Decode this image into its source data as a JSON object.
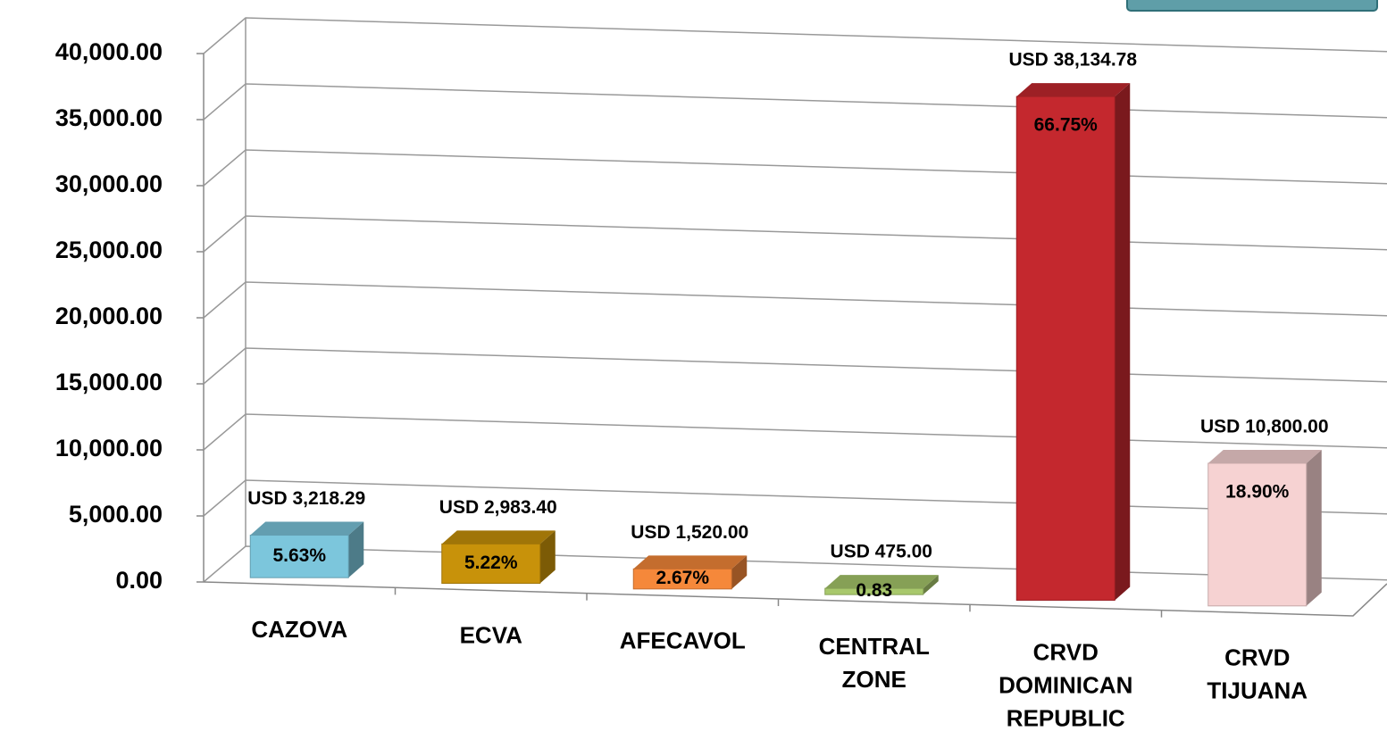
{
  "chart_data": {
    "type": "bar3d",
    "categories": [
      [
        "CAZOVA"
      ],
      [
        "ECVA"
      ],
      [
        "AFECAVOL"
      ],
      [
        "CENTRAL",
        "ZONE"
      ],
      [
        "CRVD",
        "DOMINICAN",
        "REPUBLIC"
      ],
      [
        "CRVD",
        "TIJUANA"
      ]
    ],
    "values": [
      3218.29,
      2983.4,
      1520.0,
      475.0,
      38134.78,
      10800.0
    ],
    "value_labels": [
      "USD 3,218.29",
      "USD 2,983.40",
      "USD 1,520.00",
      "USD 475.00",
      "USD 38,134.78",
      "USD 10,800.00"
    ],
    "share_labels": [
      "5.63%",
      "5.22%",
      "2.67%",
      "0.83",
      "66.75%",
      "18.90%"
    ],
    "colors": [
      "#7cc6dc",
      "#c8920a",
      "#f5883a",
      "#a8c86c",
      "#c4282e",
      "#f6d2d2"
    ],
    "ylim": [
      0,
      40000
    ],
    "yticks": [
      {
        "value": 0,
        "label": "0.00"
      },
      {
        "value": 5000,
        "label": "5,000.00"
      },
      {
        "value": 10000,
        "label": "10,000.00"
      },
      {
        "value": 15000,
        "label": "15,000.00"
      },
      {
        "value": 20000,
        "label": "20,000.00"
      },
      {
        "value": 25000,
        "label": "25,000.00"
      },
      {
        "value": 30000,
        "label": "30,000.00"
      },
      {
        "value": 35000,
        "label": "35,000.00"
      },
      {
        "value": 40000,
        "label": "40,000.00"
      }
    ],
    "grid": true
  }
}
